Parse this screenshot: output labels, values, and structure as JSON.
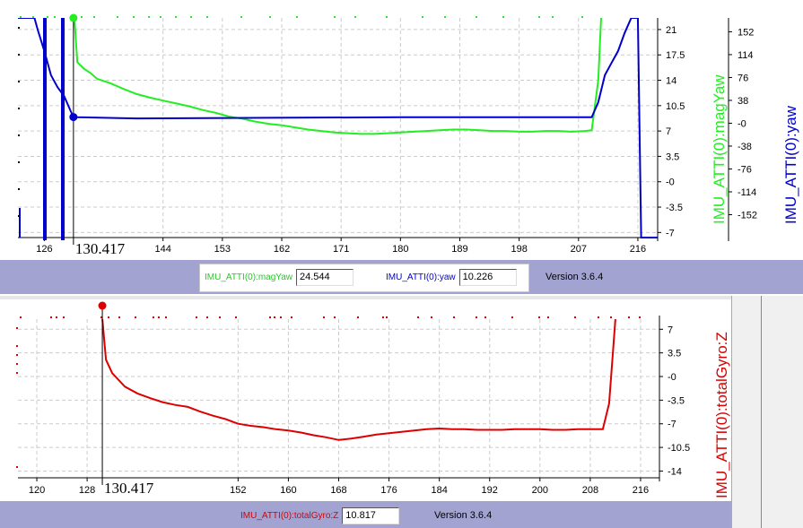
{
  "top_panel": {
    "fields": [
      {
        "label": "IMU_ATTI(0):magYaw",
        "value": "24.544",
        "color": "#22cc22"
      },
      {
        "label": "IMU_ATTI(0):yaw",
        "value": "10.226",
        "color": "#0000cc"
      }
    ],
    "version": "Version 3.6.4"
  },
  "bottom_panel": {
    "fields": [
      {
        "label": "IMU_ATTI(0):totalGyro:Z",
        "value": "10.817",
        "color": "#dd0000"
      }
    ],
    "version": "Version 3.6.4"
  },
  "chart_data": [
    {
      "type": "line",
      "x_ticks": [
        "126",
        "144",
        "153",
        "162",
        "171",
        "180",
        "189",
        "198",
        "207",
        "216"
      ],
      "xlim": [
        122,
        219
      ],
      "cursor_label": "130.417",
      "cursor_x": 130.417,
      "y_axes": [
        {
          "label": "IMU_ATTI(0):magYaw",
          "color": "#22ee22",
          "ticks": [
            "21",
            "17.5",
            "14",
            "10.5",
            "7",
            "3.5",
            "-0",
            "-3.5",
            "-7"
          ],
          "ylim": [
            -7.7,
            22.6
          ]
        },
        {
          "label": "IMU_ATTI(0):yaw",
          "color": "#0000cc",
          "ticks": [
            "152",
            "114",
            "76",
            "38",
            "-0",
            "-38",
            "-76",
            "-114",
            "-152"
          ],
          "ylim": [
            -190,
            175
          ]
        }
      ],
      "series": [
        {
          "name": "IMU_ATTI(0):magYaw",
          "color": "#22ee22",
          "axis": 0,
          "x": [
            130.417,
            131,
            132,
            133,
            134,
            136,
            138,
            140,
            142,
            144,
            146,
            148,
            150,
            152,
            154,
            156,
            158,
            160,
            162,
            164,
            166,
            168,
            170,
            172,
            174,
            176,
            178,
            180,
            182,
            184,
            186,
            188,
            190,
            192,
            194,
            196,
            198,
            200,
            202,
            204,
            206,
            208,
            209,
            210,
            210.5
          ],
          "y": [
            24.5,
            16.5,
            15.6,
            15.0,
            14.2,
            13.6,
            12.8,
            12.1,
            11.6,
            11.2,
            10.8,
            10.4,
            9.9,
            9.5,
            9.0,
            8.7,
            8.3,
            8.0,
            7.8,
            7.5,
            7.2,
            7.0,
            6.8,
            6.7,
            6.6,
            6.6,
            6.7,
            6.8,
            6.9,
            7.0,
            7.1,
            7.2,
            7.2,
            7.1,
            7.0,
            7.0,
            6.9,
            6.9,
            7.0,
            7.0,
            6.9,
            7.0,
            7.1,
            14,
            24
          ]
        },
        {
          "name": "IMU_ATTI(0):yaw",
          "color": "#0000cc",
          "axis": 1,
          "x": [
            122,
            124.5,
            125,
            126,
            127,
            128,
            129,
            130,
            130.417,
            131,
            140,
            160,
            180,
            200,
            209,
            210,
            211,
            212,
            213,
            214,
            215,
            216
          ],
          "y": [
            175,
            175,
            155,
            120,
            80,
            60,
            45,
            20,
            10.2,
            10,
            8,
            9,
            10,
            10,
            10,
            35,
            80,
            100,
            120,
            150,
            175,
            175
          ]
        }
      ]
    },
    {
      "type": "line",
      "x_ticks": [
        "120",
        "128",
        "152",
        "160",
        "168",
        "176",
        "184",
        "192",
        "200",
        "208",
        "216"
      ],
      "xlim": [
        117,
        219
      ],
      "cursor_label": "130.417",
      "cursor_x": 130.417,
      "y_axes": [
        {
          "label": "IMU_ATTI(0):totalGyro:Z",
          "color": "#dd0000",
          "ticks": [
            "7",
            "3.5",
            "-0",
            "-3.5",
            "-7",
            "-10.5",
            "-14"
          ],
          "ylim": [
            -15,
            8.5
          ]
        }
      ],
      "series": [
        {
          "name": "IMU_ATTI(0):totalGyro:Z",
          "color": "#dd0000",
          "axis": 0,
          "x": [
            130.417,
            131,
            132,
            134,
            136,
            138,
            140,
            142,
            144,
            146,
            148,
            150,
            152,
            154,
            156,
            158,
            160,
            162,
            164,
            166,
            168,
            170,
            172,
            174,
            176,
            178,
            180,
            182,
            184,
            186,
            188,
            190,
            192,
            194,
            196,
            198,
            200,
            202,
            204,
            206,
            208,
            210,
            211,
            212
          ],
          "y": [
            10.8,
            2.5,
            0.5,
            -1.5,
            -2.5,
            -3.2,
            -3.8,
            -4.2,
            -4.5,
            -5.2,
            -5.8,
            -6.3,
            -7.0,
            -7.3,
            -7.5,
            -7.8,
            -8.0,
            -8.3,
            -8.7,
            -9.0,
            -9.4,
            -9.2,
            -8.9,
            -8.6,
            -8.4,
            -8.2,
            -8.0,
            -7.8,
            -7.7,
            -7.8,
            -7.8,
            -7.9,
            -7.9,
            -7.9,
            -7.8,
            -7.8,
            -7.8,
            -7.9,
            -7.9,
            -7.8,
            -7.8,
            -7.8,
            -4,
            8.5
          ]
        }
      ]
    }
  ]
}
